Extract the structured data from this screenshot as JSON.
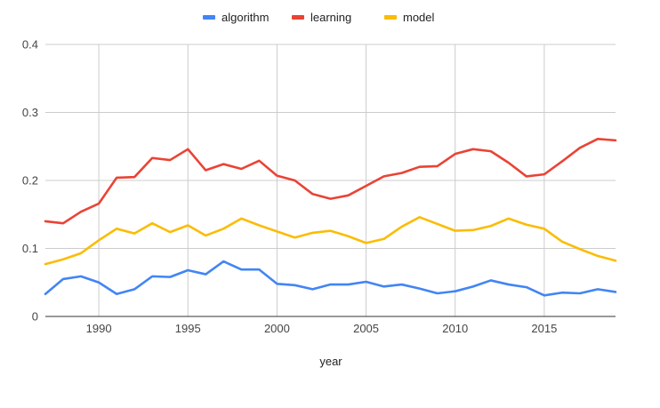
{
  "chart_data": {
    "type": "line",
    "title": "",
    "xlabel": "year",
    "ylabel": "",
    "xlim": [
      1987,
      2019
    ],
    "ylim": [
      0,
      0.4
    ],
    "x_ticks": [
      1990,
      1995,
      2000,
      2005,
      2010,
      2015
    ],
    "x_tick_labels": [
      "1990",
      "1995",
      "2000",
      "2005",
      "2010",
      "2015"
    ],
    "y_ticks": [
      0,
      0.1,
      0.2,
      0.3,
      0.4
    ],
    "y_tick_labels": [
      "0",
      "0.1",
      "0.2",
      "0.3",
      "0.4"
    ],
    "grid": true,
    "legend_position": "top",
    "x": [
      1987,
      1988,
      1989,
      1990,
      1991,
      1992,
      1993,
      1994,
      1995,
      1996,
      1997,
      1998,
      1999,
      2000,
      2001,
      2002,
      2003,
      2004,
      2005,
      2006,
      2007,
      2008,
      2009,
      2010,
      2011,
      2012,
      2013,
      2014,
      2015,
      2016,
      2017,
      2018,
      2019
    ],
    "series": [
      {
        "name": "algorithm",
        "color": "#4285f4",
        "values": [
          0.033,
          0.055,
          0.059,
          0.05,
          0.033,
          0.04,
          0.059,
          0.058,
          0.068,
          0.062,
          0.081,
          0.069,
          0.069,
          0.048,
          0.046,
          0.04,
          0.047,
          0.047,
          0.051,
          0.044,
          0.047,
          0.041,
          0.034,
          0.037,
          0.044,
          0.053,
          0.047,
          0.043,
          0.031,
          0.035,
          0.034,
          0.04,
          0.036
        ]
      },
      {
        "name": "learning",
        "color": "#ea4335",
        "values": [
          0.14,
          0.137,
          0.154,
          0.166,
          0.204,
          0.205,
          0.233,
          0.23,
          0.246,
          0.215,
          0.224,
          0.217,
          0.229,
          0.207,
          0.2,
          0.18,
          0.173,
          0.178,
          0.192,
          0.206,
          0.211,
          0.22,
          0.221,
          0.239,
          0.246,
          0.243,
          0.226,
          0.206,
          0.209,
          0.228,
          0.248,
          0.261,
          0.259
        ]
      },
      {
        "name": "model",
        "color": "#fbbc04",
        "values": [
          0.077,
          0.084,
          0.093,
          0.112,
          0.129,
          0.122,
          0.137,
          0.124,
          0.134,
          0.119,
          0.129,
          0.144,
          0.134,
          0.125,
          0.116,
          0.123,
          0.126,
          0.118,
          0.108,
          0.114,
          0.132,
          0.146,
          0.136,
          0.126,
          0.127,
          0.133,
          0.144,
          0.135,
          0.129,
          0.11,
          0.099,
          0.089,
          0.082
        ]
      }
    ]
  }
}
